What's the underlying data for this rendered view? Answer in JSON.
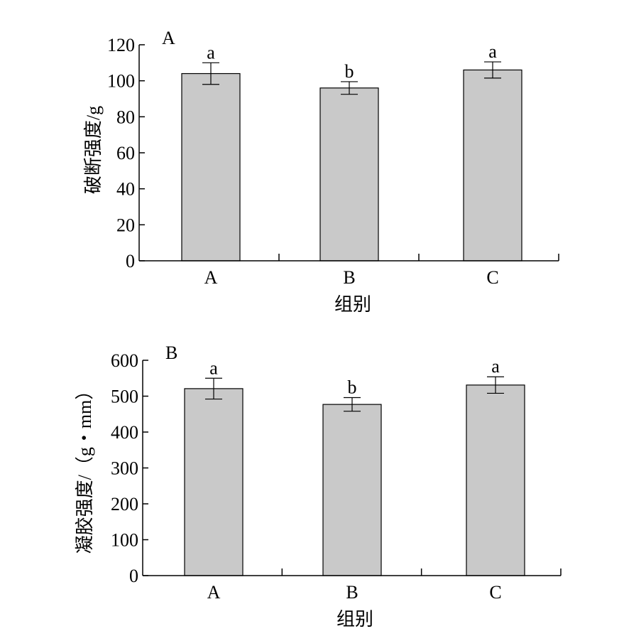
{
  "chart_data": [
    {
      "type": "bar",
      "panel_label": "A",
      "categories": [
        "A",
        "B",
        "C"
      ],
      "values": [
        104,
        96,
        106
      ],
      "errors": [
        6,
        3.5,
        4.5
      ],
      "significance": [
        "a",
        "b",
        "a"
      ],
      "xlabel": "组别",
      "ylabel": "破断强度/g",
      "ylim": [
        0,
        120
      ],
      "yticks": [
        "0",
        "20",
        "40",
        "60",
        "80",
        "100",
        "120"
      ],
      "bar_color": "#c9c9c9",
      "grid": false
    },
    {
      "type": "bar",
      "panel_label": "B",
      "categories": [
        "A",
        "B",
        "C"
      ],
      "values": [
        521,
        477,
        531
      ],
      "errors": [
        29,
        19,
        23
      ],
      "significance": [
        "a",
        "b",
        "a"
      ],
      "xlabel": "组别",
      "ylabel": "凝胶强度/（g・mm）",
      "ylim": [
        0,
        600
      ],
      "yticks": [
        "0",
        "100",
        "200",
        "300",
        "400",
        "500",
        "600"
      ],
      "bar_color": "#c9c9c9",
      "grid": false
    }
  ]
}
